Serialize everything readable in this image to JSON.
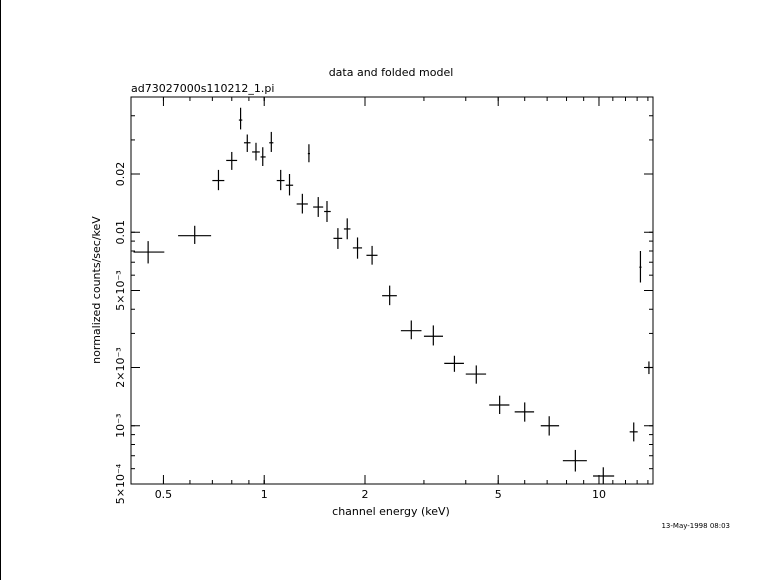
{
  "chart_data": {
    "type": "scatter",
    "title": "data and folded model",
    "subtitle": "ad73027000s110212_1.pi",
    "xlabel": "channel energy (keV)",
    "ylabel": "normalized counts/sec/keV",
    "timestamp": "13-May-1998 08:03",
    "x_scale": "log",
    "y_scale": "log",
    "xlim": [
      0.4,
      14.5
    ],
    "ylim": [
      0.0005,
      0.05
    ],
    "grid": false,
    "x_ticks": [
      {
        "value": 0.5,
        "label": "0.5"
      },
      {
        "value": 1,
        "label": "1"
      },
      {
        "value": 2,
        "label": "2"
      },
      {
        "value": 5,
        "label": "5"
      },
      {
        "value": 10,
        "label": "10"
      }
    ],
    "y_ticks": [
      {
        "value": 0.0005,
        "label": "5×10⁻⁴"
      },
      {
        "value": 0.001,
        "label": "10⁻³"
      },
      {
        "value": 0.002,
        "label": "2×10⁻³"
      },
      {
        "value": 0.005,
        "label": "5×10⁻³"
      },
      {
        "value": 0.01,
        "label": "0.01"
      },
      {
        "value": 0.02,
        "label": "0.02"
      }
    ],
    "series": [
      {
        "points": [
          {
            "x": 0.45,
            "x_lo": 0.407,
            "x_hi": 0.503,
            "y": 0.0079,
            "y_lo": 0.0069,
            "y_hi": 0.009
          },
          {
            "x": 0.62,
            "x_lo": 0.553,
            "x_hi": 0.694,
            "y": 0.0096,
            "y_lo": 0.0087,
            "y_hi": 0.0108
          },
          {
            "x": 0.73,
            "x_lo": 0.7,
            "x_hi": 0.76,
            "y": 0.0185,
            "y_lo": 0.0165,
            "y_hi": 0.021
          },
          {
            "x": 0.8,
            "x_lo": 0.77,
            "x_hi": 0.83,
            "y": 0.0235,
            "y_lo": 0.021,
            "y_hi": 0.026
          },
          {
            "x": 0.85,
            "x_lo": 0.84,
            "x_hi": 0.86,
            "y": 0.038,
            "y_lo": 0.034,
            "y_hi": 0.044
          },
          {
            "x": 0.89,
            "x_lo": 0.87,
            "x_hi": 0.91,
            "y": 0.029,
            "y_lo": 0.026,
            "y_hi": 0.032
          },
          {
            "x": 0.945,
            "x_lo": 0.92,
            "x_hi": 0.97,
            "y": 0.026,
            "y_lo": 0.0235,
            "y_hi": 0.029
          },
          {
            "x": 0.99,
            "x_lo": 0.975,
            "x_hi": 1.01,
            "y": 0.0245,
            "y_lo": 0.022,
            "y_hi": 0.0275
          },
          {
            "x": 1.05,
            "x_lo": 1.035,
            "x_hi": 1.065,
            "y": 0.029,
            "y_lo": 0.026,
            "y_hi": 0.033
          },
          {
            "x": 1.12,
            "x_lo": 1.09,
            "x_hi": 1.15,
            "y": 0.0185,
            "y_lo": 0.0165,
            "y_hi": 0.021
          },
          {
            "x": 1.19,
            "x_lo": 1.16,
            "x_hi": 1.22,
            "y": 0.0175,
            "y_lo": 0.0155,
            "y_hi": 0.02
          },
          {
            "x": 1.3,
            "x_lo": 1.25,
            "x_hi": 1.35,
            "y": 0.014,
            "y_lo": 0.0125,
            "y_hi": 0.0158
          },
          {
            "x": 1.36,
            "x_lo": 1.35,
            "x_hi": 1.37,
            "y": 0.0255,
            "y_lo": 0.023,
            "y_hi": 0.0285
          },
          {
            "x": 1.45,
            "x_lo": 1.4,
            "x_hi": 1.5,
            "y": 0.0135,
            "y_lo": 0.012,
            "y_hi": 0.0152
          },
          {
            "x": 1.54,
            "x_lo": 1.51,
            "x_hi": 1.58,
            "y": 0.0128,
            "y_lo": 0.0113,
            "y_hi": 0.0145
          },
          {
            "x": 1.66,
            "x_lo": 1.61,
            "x_hi": 1.71,
            "y": 0.0093,
            "y_lo": 0.0082,
            "y_hi": 0.0105
          },
          {
            "x": 1.77,
            "x_lo": 1.73,
            "x_hi": 1.81,
            "y": 0.0104,
            "y_lo": 0.0092,
            "y_hi": 0.0118
          },
          {
            "x": 1.9,
            "x_lo": 1.84,
            "x_hi": 1.96,
            "y": 0.0083,
            "y_lo": 0.0073,
            "y_hi": 0.0094
          },
          {
            "x": 2.1,
            "x_lo": 2.02,
            "x_hi": 2.18,
            "y": 0.0076,
            "y_lo": 0.0068,
            "y_hi": 0.0085
          },
          {
            "x": 2.37,
            "x_lo": 2.25,
            "x_hi": 2.49,
            "y": 0.0047,
            "y_lo": 0.0042,
            "y_hi": 0.0053
          },
          {
            "x": 2.75,
            "x_lo": 2.56,
            "x_hi": 2.95,
            "y": 0.0031,
            "y_lo": 0.0028,
            "y_hi": 0.0035
          },
          {
            "x": 3.2,
            "x_lo": 3.0,
            "x_hi": 3.42,
            "y": 0.0029,
            "y_lo": 0.0026,
            "y_hi": 0.0033
          },
          {
            "x": 3.7,
            "x_lo": 3.45,
            "x_hi": 3.95,
            "y": 0.0021,
            "y_lo": 0.0019,
            "y_hi": 0.0023
          },
          {
            "x": 4.3,
            "x_lo": 4.0,
            "x_hi": 4.6,
            "y": 0.00185,
            "y_lo": 0.00165,
            "y_hi": 0.00205
          },
          {
            "x": 5.05,
            "x_lo": 4.7,
            "x_hi": 5.4,
            "y": 0.00128,
            "y_lo": 0.00115,
            "y_hi": 0.00143
          },
          {
            "x": 6.0,
            "x_lo": 5.6,
            "x_hi": 6.4,
            "y": 0.00118,
            "y_lo": 0.00105,
            "y_hi": 0.00132
          },
          {
            "x": 7.1,
            "x_lo": 6.7,
            "x_hi": 7.6,
            "y": 0.001,
            "y_lo": 0.00089,
            "y_hi": 0.00112
          },
          {
            "x": 8.5,
            "x_lo": 7.8,
            "x_hi": 9.2,
            "y": 0.00066,
            "y_lo": 0.00058,
            "y_hi": 0.00075
          },
          {
            "x": 10.3,
            "x_lo": 9.6,
            "x_hi": 11.1,
            "y": 0.00055,
            "y_lo": 0.0005,
            "y_hi": 0.00061
          },
          {
            "x": 12.7,
            "x_lo": 12.35,
            "x_hi": 13.05,
            "y": 0.00093,
            "y_lo": 0.00083,
            "y_hi": 0.00104
          },
          {
            "x": 13.3,
            "x_lo": 13.2,
            "x_hi": 13.4,
            "y": 0.0066,
            "y_lo": 0.0055,
            "y_hi": 0.008
          },
          {
            "x": 14.1,
            "x_lo": 13.75,
            "x_hi": 14.45,
            "y": 0.002,
            "y_lo": 0.00185,
            "y_hi": 0.00215
          }
        ]
      }
    ]
  }
}
